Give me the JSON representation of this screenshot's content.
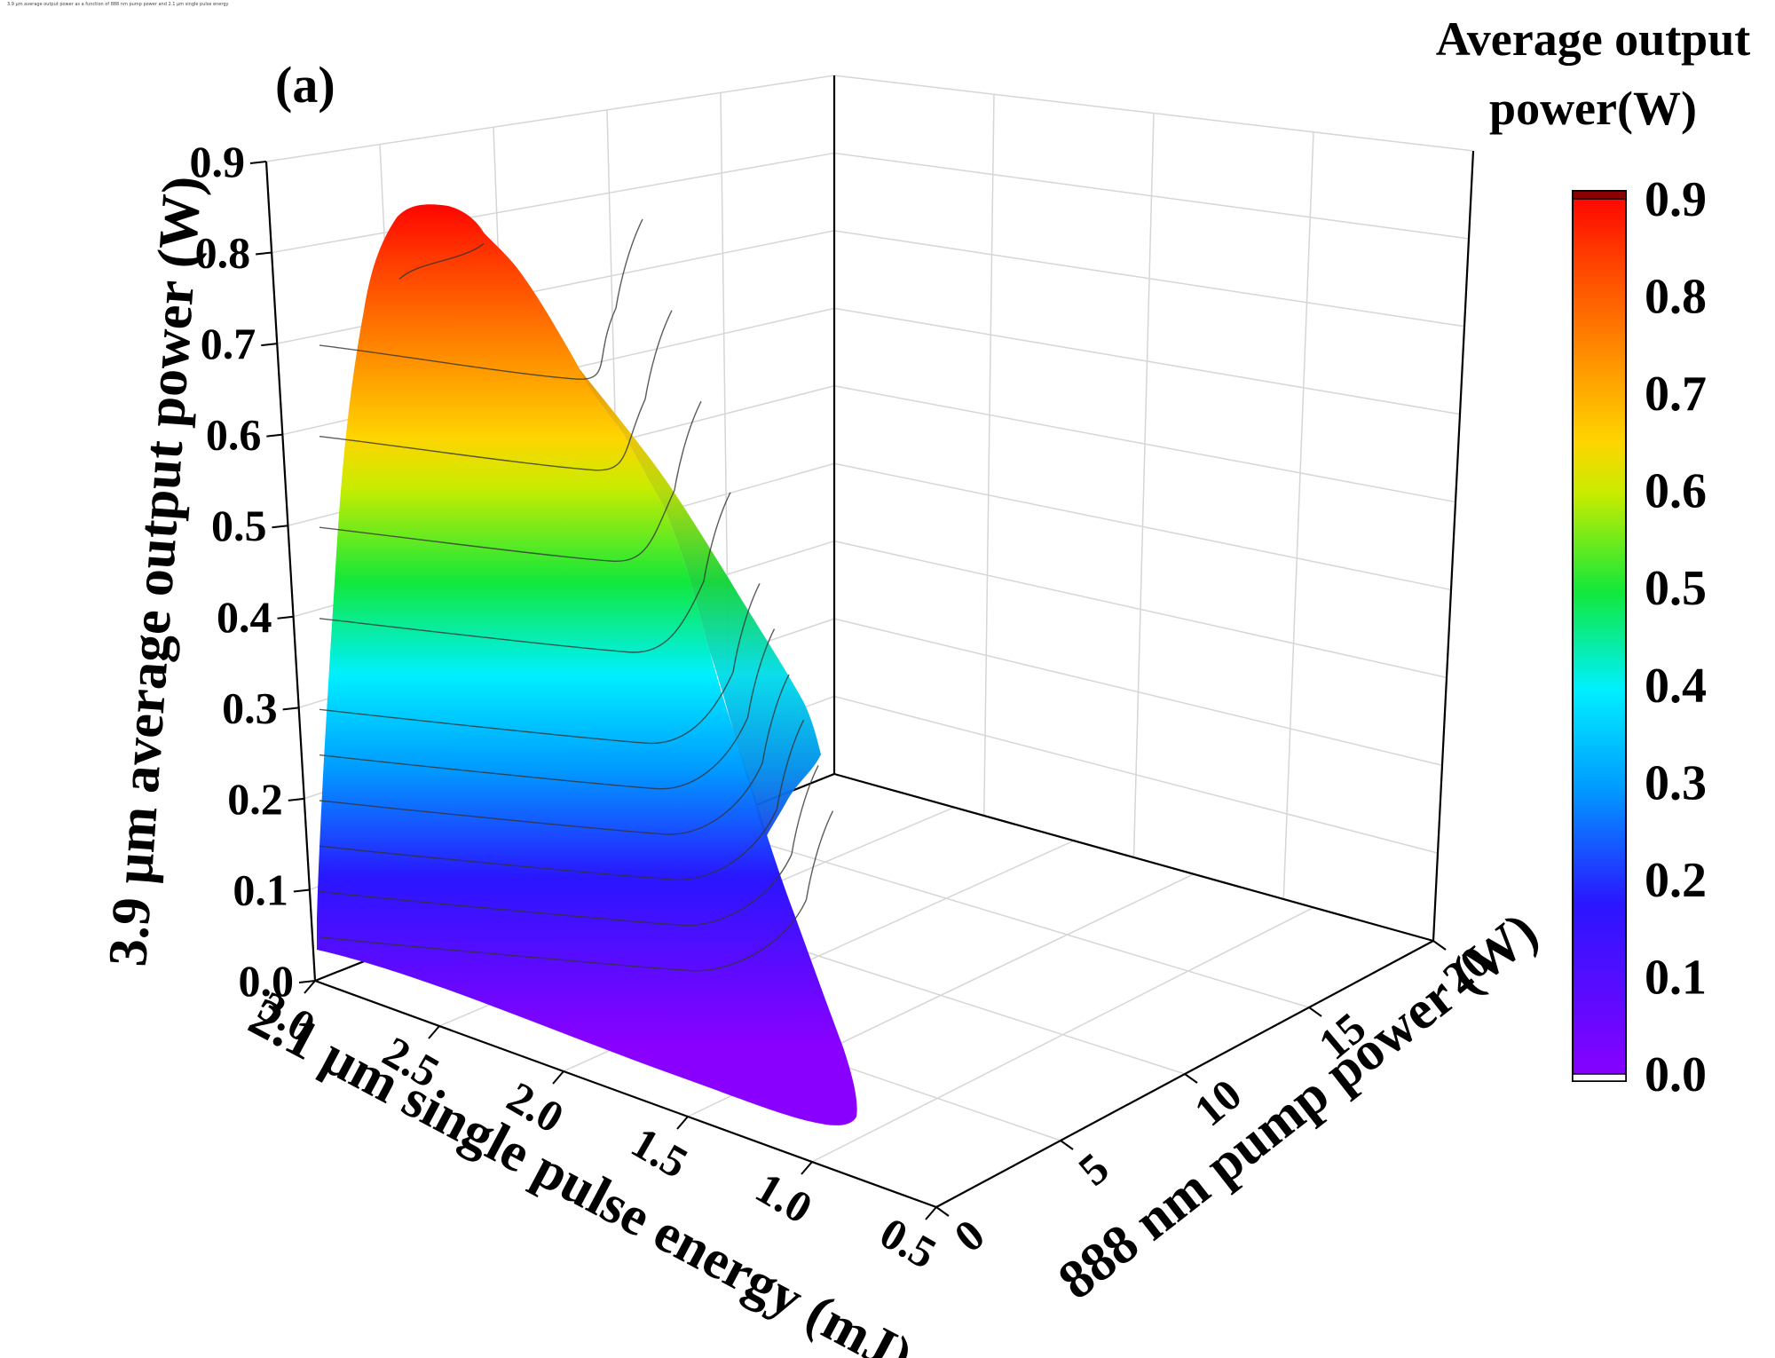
{
  "page": {
    "note": "3.9 µm average output power as a function of 888 nm pump power and 2.1 µm single pulse energy"
  },
  "chart_data": {
    "type": "surface3d",
    "panel_label": "(a)",
    "zlabel": "3.9 µm average output power (W)",
    "xlabel": "2.1 µm single pulse energy (mJ)",
    "ylabel": "888 nm pump power (W)",
    "x_ticks": [
      "0.5",
      "1.0",
      "1.5",
      "2.0",
      "2.5",
      "3.0"
    ],
    "y_ticks": [
      "0",
      "5",
      "10",
      "15",
      "20"
    ],
    "z_ticks": [
      "0.0",
      "0.1",
      "0.2",
      "0.3",
      "0.4",
      "0.5",
      "0.6",
      "0.7",
      "0.8",
      "0.9"
    ],
    "xlim": [
      0.5,
      3.0
    ],
    "ylim": [
      0,
      20
    ],
    "zlim": [
      0,
      0.9
    ],
    "contour_levels": [
      0.05,
      0.1,
      0.15,
      0.2,
      0.25,
      0.3,
      0.4,
      0.5,
      0.6,
      0.7,
      0.8
    ],
    "surface_points": [
      {
        "pulse_energy_mJ": 3.0,
        "pump_power_W": 0,
        "power_W": 0.0
      },
      {
        "pulse_energy_mJ": 0.9,
        "pump_power_W": 0,
        "power_W": 0.0
      },
      {
        "pulse_energy_mJ": 0.9,
        "pump_power_W": 0,
        "power_W": 0.08
      },
      {
        "pulse_energy_mJ": 1.55,
        "pump_power_W": 0,
        "power_W": 0.35
      },
      {
        "pulse_energy_mJ": 1.85,
        "pump_power_W": 0,
        "power_W": 0.55
      },
      {
        "pulse_energy_mJ": 2.2,
        "pump_power_W": 0,
        "power_W": 0.73
      },
      {
        "pulse_energy_mJ": 2.55,
        "pump_power_W": 0,
        "power_W": 0.83
      },
      {
        "pulse_energy_mJ": 2.85,
        "pump_power_W": 0,
        "power_W": 0.86
      },
      {
        "pulse_energy_mJ": 3.0,
        "pump_power_W": 0,
        "power_W": 0.78
      },
      {
        "pulse_energy_mJ": 1.6,
        "pump_power_W": 6,
        "power_W": 0.3
      },
      {
        "pulse_energy_mJ": 1.3,
        "pump_power_W": 3,
        "power_W": 0.12
      }
    ],
    "colorbar": {
      "title_line1": "Average output",
      "title_line2": "power(W)",
      "ticks": [
        "0.0",
        "0.1",
        "0.2",
        "0.3",
        "0.4",
        "0.5",
        "0.6",
        "0.7",
        "0.8",
        "0.9"
      ],
      "range": [
        0,
        0.9
      ],
      "stops": [
        {
          "offset": 0.0,
          "color": "#8a00ff"
        },
        {
          "offset": 0.2,
          "color": "#2a16ff"
        },
        {
          "offset": 0.33,
          "color": "#009cff"
        },
        {
          "offset": 0.44,
          "color": "#00f0ff"
        },
        {
          "offset": 0.55,
          "color": "#12e83a"
        },
        {
          "offset": 0.66,
          "color": "#c8ec00"
        },
        {
          "offset": 0.72,
          "color": "#ffd400"
        },
        {
          "offset": 0.82,
          "color": "#ff8a00"
        },
        {
          "offset": 0.93,
          "color": "#ff3a00"
        },
        {
          "offset": 1.0,
          "color": "#ff0000"
        }
      ],
      "top_cap_color": "#8b0000",
      "bottom_cap_color": "#ffffff"
    },
    "colors": {
      "grid": "#d6d6d6",
      "axis": "#000000",
      "contour": "#333333"
    }
  }
}
